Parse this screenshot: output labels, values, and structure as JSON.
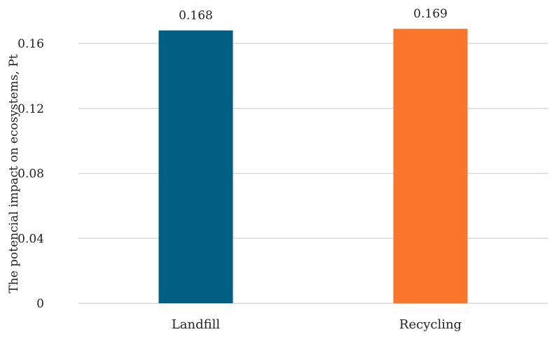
{
  "chart_data": {
    "type": "bar",
    "categories": [
      "Landfill",
      "Recycling"
    ],
    "values": [
      0.168,
      0.169
    ],
    "data_labels": [
      "0.168",
      "0.169"
    ],
    "colors": [
      "#005f83",
      "#fb762d"
    ],
    "title": "",
    "xlabel": "",
    "ylabel": "The potencial  impact on ecosystems, Pt",
    "ylim": [
      0,
      0.16
    ],
    "yticks": [
      0,
      0.04,
      0.08,
      0.12,
      0.16
    ],
    "ytick_labels": [
      "0",
      "0.04",
      "0.08",
      "0.12",
      "0.16"
    ],
    "grid": true,
    "legend": "none"
  }
}
